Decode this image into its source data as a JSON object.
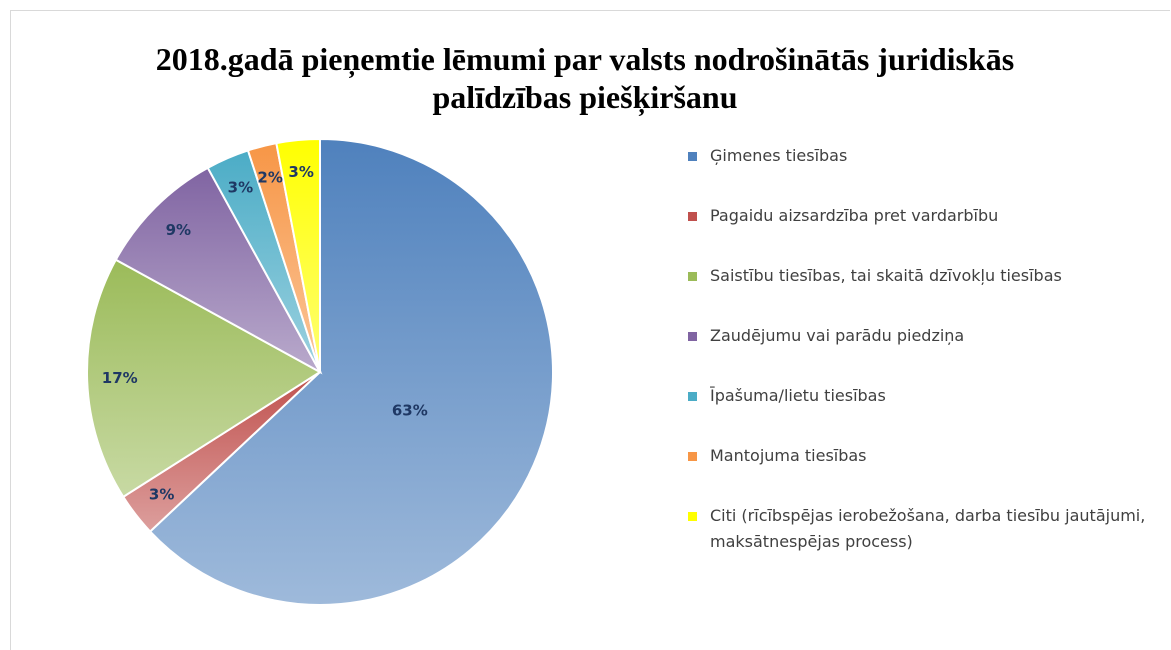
{
  "chart_data": {
    "type": "pie",
    "title": "2018.gadā pieņemtie lēmumi par valsts nodrošinātās juridiskās palīdzības piešķiršanu",
    "categories": [
      "Ģimenes tiesības",
      "Pagaidu aizsardzība pret vardarbību",
      "Saistību tiesības, tai skaitā dzīvokļu tiesības",
      "Zaudējumu vai parādu piedziņa",
      "Īpašuma/lietu tiesības",
      "Mantojuma tiesības",
      "Citi (rīcībspējas ierobežošana, darba tiesību jautājumi, maksātnespējas process)"
    ],
    "values": [
      63,
      3,
      17,
      9,
      3,
      2,
      3
    ],
    "value_labels": [
      "63%",
      "3%",
      "17%",
      "9%",
      "3%",
      "2%",
      "3%"
    ],
    "colors": [
      "#4f81bd",
      "#c0504d",
      "#9bbb59",
      "#8064a2",
      "#4bacc6",
      "#f79646",
      "#ffff00"
    ],
    "legend": "right"
  }
}
